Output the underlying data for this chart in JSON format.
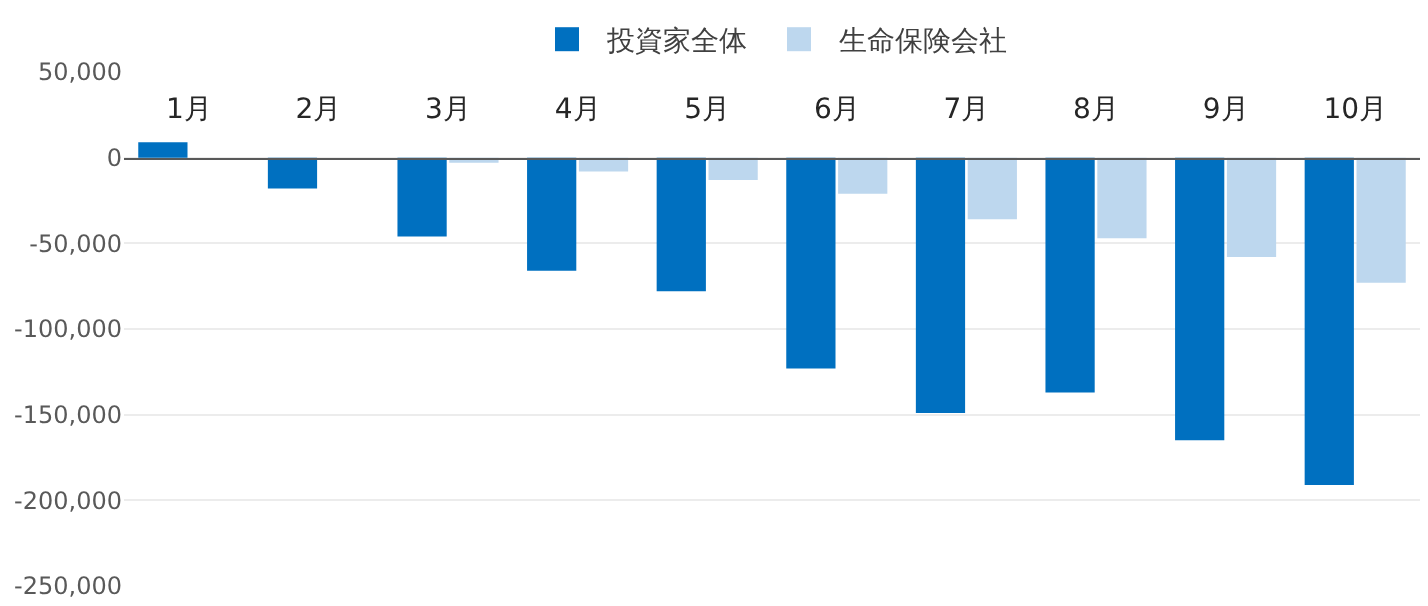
{
  "chart_data": {
    "type": "bar",
    "categories": [
      "1月",
      "2月",
      "3月",
      "4月",
      "5月",
      "6月",
      "7月",
      "8月",
      "9月",
      "10月"
    ],
    "series": [
      {
        "name": "投資家全体",
        "color": "#0070c0",
        "values": [
          9000,
          -18000,
          -46000,
          -66000,
          -78000,
          -123000,
          -149000,
          -137000,
          -165000,
          -191000
        ]
      },
      {
        "name": "生命保険会社",
        "color": "#bdd7ee",
        "values": [
          null,
          null,
          -3000,
          -8000,
          -13000,
          -21000,
          -36000,
          -47000,
          -58000,
          -73000
        ]
      }
    ],
    "ylim": [
      -250000,
      50000
    ],
    "yticks": [
      {
        "value": -250000,
        "label": "-250,000"
      },
      {
        "value": -200000,
        "label": "-200,000"
      },
      {
        "value": -150000,
        "label": "-150,000"
      },
      {
        "value": -100000,
        "label": "-100,000"
      },
      {
        "value": -50000,
        "label": "-50,000"
      },
      0,
      {
        "value": 50000,
        "label": "50,000"
      }
    ],
    "grid": "y",
    "legend": "top"
  }
}
